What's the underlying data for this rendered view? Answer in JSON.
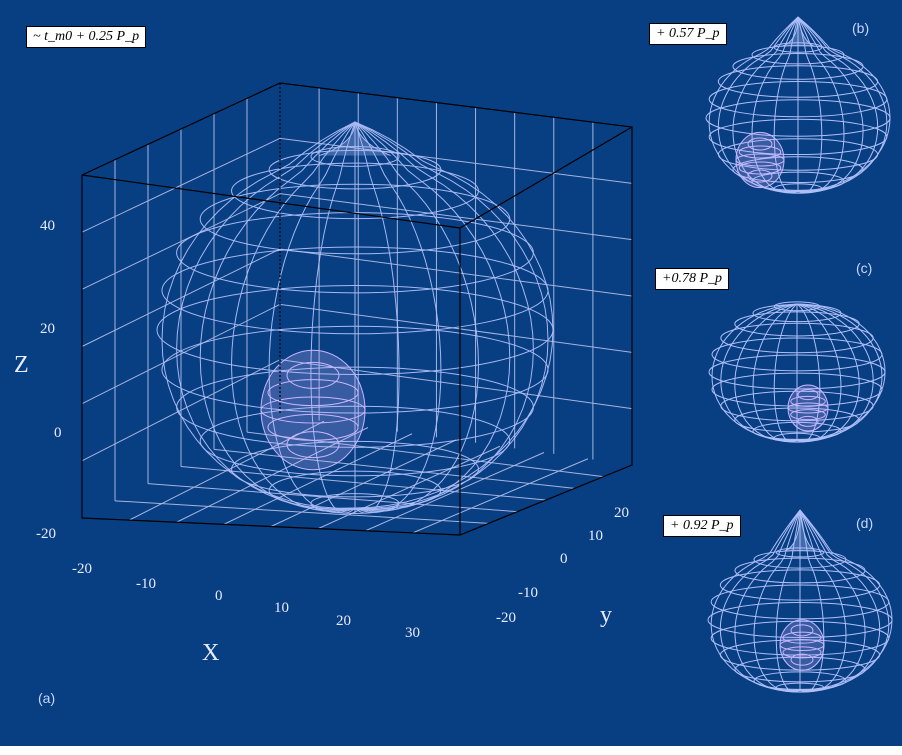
{
  "colors": {
    "background": "#083e82",
    "mesh": "#b7c6ff",
    "mesh_inner": "#c9b6ff",
    "grid": "#d8dcff",
    "frame": "#000000"
  },
  "panels": {
    "a": {
      "tag": "(a)",
      "time_label": "~ t_m0 + 0.25 P_p",
      "axes": {
        "x_label": "X",
        "y_label": "y",
        "z_label": "Z",
        "x_ticks": [
          "-20",
          "-10",
          "0",
          "10",
          "20",
          "30"
        ],
        "y_ticks": [
          "-20",
          "-10",
          "0",
          "10",
          "20"
        ],
        "z_ticks": [
          "-20",
          "0",
          "20",
          "40"
        ]
      }
    },
    "b": {
      "tag": "(b)",
      "time_label": "+ 0.57 P_p"
    },
    "c": {
      "tag": "(c)",
      "time_label": "+0.78 P_p"
    },
    "d": {
      "tag": "(d)",
      "time_label": "+ 0.92 P_p"
    }
  }
}
